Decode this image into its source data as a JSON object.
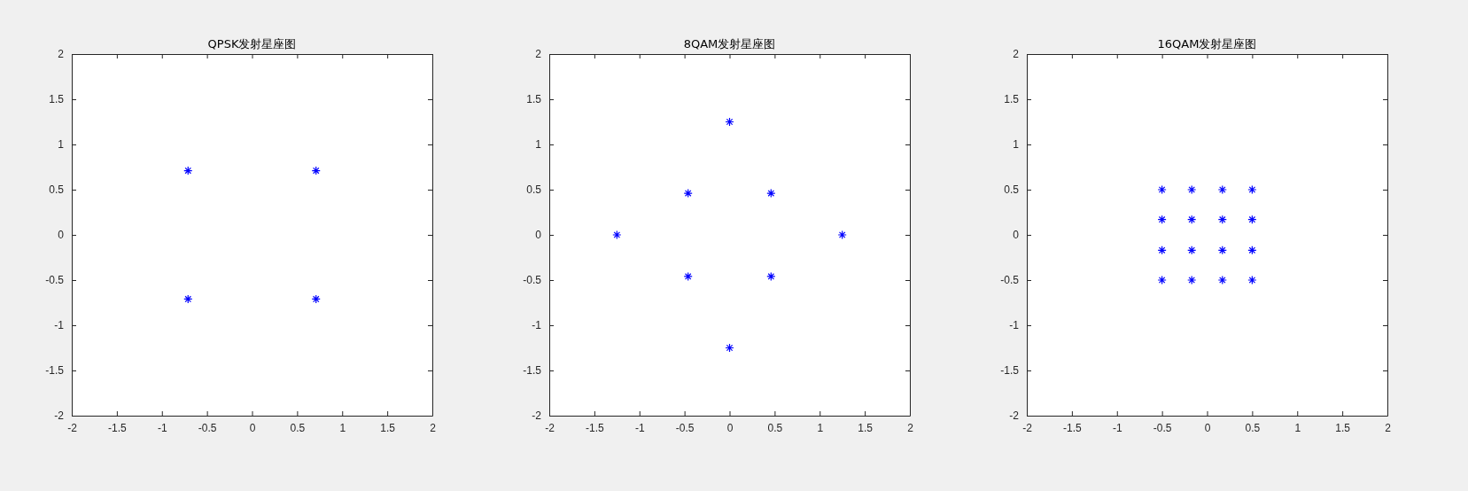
{
  "chart_data": [
    {
      "type": "scatter",
      "title": "QPSK发射星座图",
      "x": [
        -0.71,
        -0.71,
        0.71,
        0.71
      ],
      "values": [
        0.71,
        -0.71,
        0.71,
        -0.71
      ],
      "color": "#0000ff",
      "marker": "cross",
      "xlim": [
        -2,
        2
      ],
      "ylim": [
        -2,
        2
      ],
      "xticks": [
        -2,
        -1.5,
        -1,
        -0.5,
        0,
        0.5,
        1,
        1.5,
        2
      ],
      "yticks": [
        -2,
        -1.5,
        -1,
        -0.5,
        0,
        0.5,
        1,
        1.5,
        2
      ],
      "grid": false
    },
    {
      "type": "scatter",
      "title": "8QAM发射星座图",
      "x": [
        -1.25,
        -0.46,
        -0.46,
        0,
        0,
        0.46,
        0.46,
        1.25
      ],
      "values": [
        0,
        0.46,
        -0.46,
        1.25,
        -1.25,
        0.46,
        -0.46,
        0
      ],
      "color": "#0000ff",
      "marker": "cross",
      "xlim": [
        -2,
        2
      ],
      "ylim": [
        -2,
        2
      ],
      "xticks": [
        -2,
        -1.5,
        -1,
        -0.5,
        0,
        0.5,
        1,
        1.5,
        2
      ],
      "yticks": [
        -2,
        -1.5,
        -1,
        -0.5,
        0,
        0.5,
        1,
        1.5,
        2
      ],
      "grid": false
    },
    {
      "type": "scatter",
      "title": "16QAM发射星座图",
      "x": [
        -0.5,
        -0.5,
        -0.5,
        -0.5,
        -0.17,
        -0.17,
        -0.17,
        -0.17,
        0.17,
        0.17,
        0.17,
        0.17,
        0.5,
        0.5,
        0.5,
        0.5
      ],
      "values": [
        0.5,
        0.17,
        -0.17,
        -0.5,
        0.5,
        0.17,
        -0.17,
        -0.5,
        0.5,
        0.17,
        -0.17,
        -0.5,
        0.5,
        0.17,
        -0.17,
        -0.5
      ],
      "color": "#0000ff",
      "marker": "cross",
      "xlim": [
        -2,
        2
      ],
      "ylim": [
        -2,
        2
      ],
      "xticks": [
        -2,
        -1.5,
        -1,
        -0.5,
        0,
        0.5,
        1,
        1.5,
        2
      ],
      "yticks": [
        -2,
        -1.5,
        -1,
        -0.5,
        0,
        0.5,
        1,
        1.5,
        2
      ],
      "grid": false
    }
  ]
}
